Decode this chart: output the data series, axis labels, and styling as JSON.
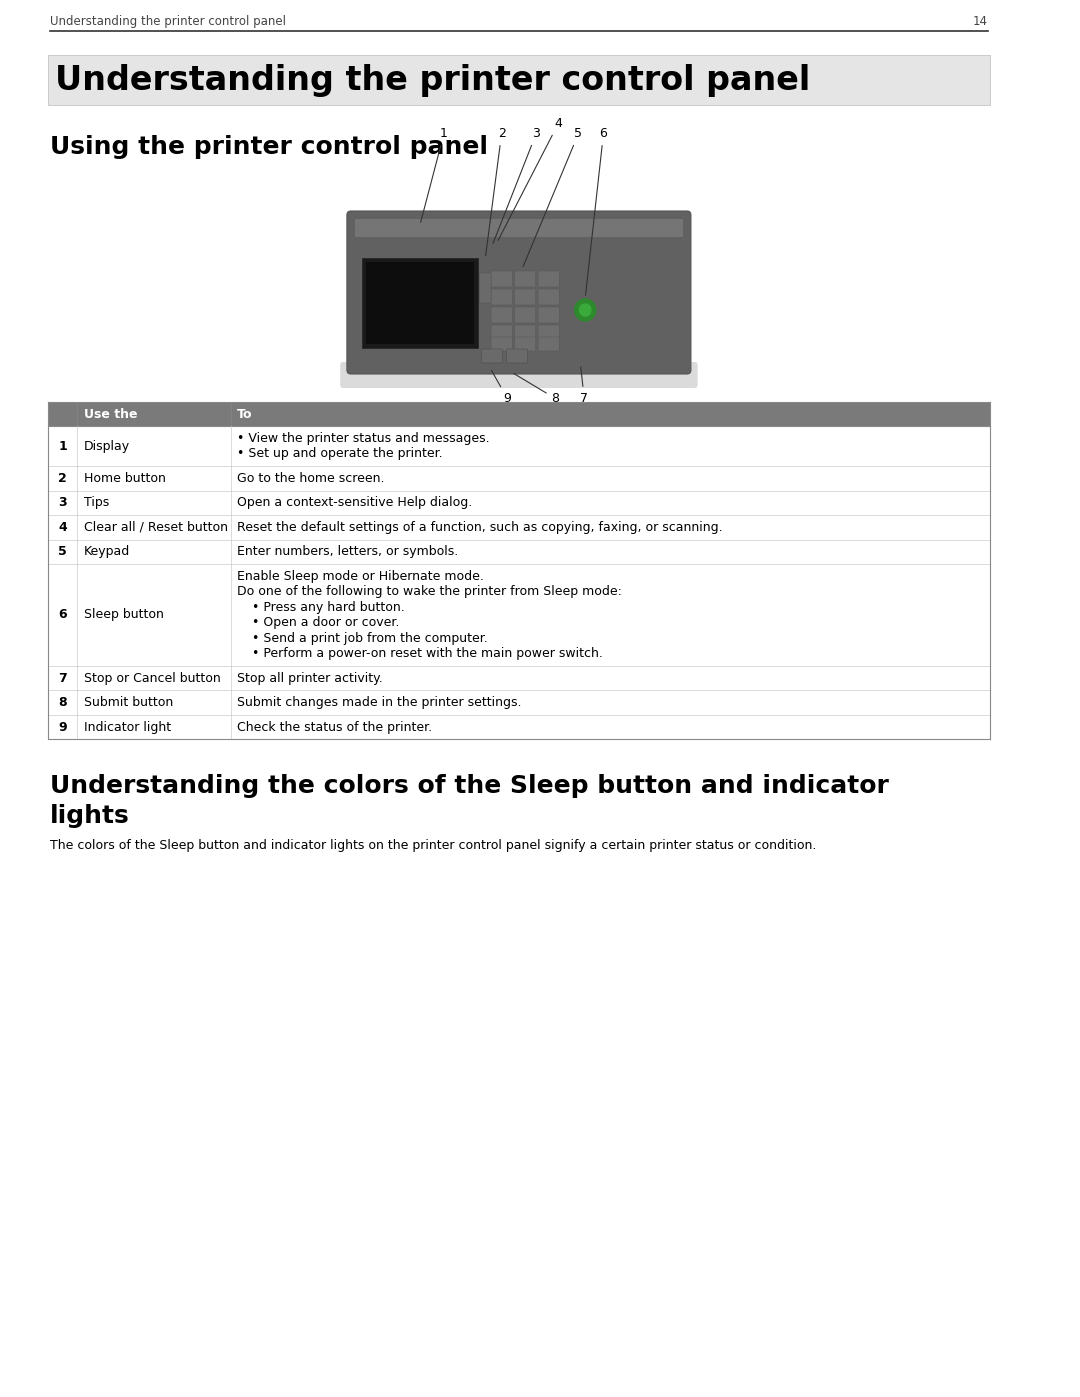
{
  "page_width": 10.8,
  "page_height": 13.97,
  "dpi": 100,
  "bg_color": "#ffffff",
  "header_text": "Understanding the printer control panel",
  "header_page_num": "14",
  "header_font_size": 8.5,
  "section1_title": "Understanding the printer control panel",
  "section1_font_size": 24,
  "section2_title": "Using the printer control panel",
  "section2_font_size": 18,
  "section3_title_line1": "Understanding the colors of the Sleep button and indicator",
  "section3_title_line2": "lights",
  "section3_font_size": 18,
  "section3_body": "The colors of the Sleep button and indicator lights on the printer control panel signify a certain printer status or condition.",
  "section3_body_font_size": 9,
  "table_header_bg": "#7a7a7a",
  "table_header_color": "#ffffff",
  "table_header_cols": [
    "Use the",
    "To"
  ],
  "table_rows": [
    {
      "num": "1",
      "use": "Display",
      "to_lines": [
        "• View the printer status and messages.",
        "• Set up and operate the printer."
      ]
    },
    {
      "num": "2",
      "use": "Home button",
      "to_lines": [
        "Go to the home screen."
      ]
    },
    {
      "num": "3",
      "use": "Tips",
      "to_lines": [
        "Open a context-sensitive Help dialog."
      ]
    },
    {
      "num": "4",
      "use": "Clear all / Reset button",
      "to_lines": [
        "Reset the default settings of a function, such as copying, faxing, or scanning."
      ]
    },
    {
      "num": "5",
      "use": "Keypad",
      "to_lines": [
        "Enter numbers, letters, or symbols."
      ]
    },
    {
      "num": "6",
      "use": "Sleep button",
      "to_lines": [
        "Enable Sleep mode or Hibernate mode.",
        "Do one of the following to wake the printer from Sleep mode:",
        "  • Press any hard button.",
        "  • Open a door or cover.",
        "  • Send a print job from the computer.",
        "  • Perform a power-on reset with the main power switch."
      ]
    },
    {
      "num": "7",
      "use": "Stop or Cancel button",
      "to_lines": [
        "Stop all printer activity."
      ]
    },
    {
      "num": "8",
      "use": "Submit button",
      "to_lines": [
        "Submit changes made in the printer settings."
      ]
    },
    {
      "num": "9",
      "use": "Indicator light",
      "to_lines": [
        "Check the status of the printer."
      ]
    }
  ],
  "table_border_color": "#aaaaaa",
  "table_text_color": "#000000",
  "table_fs": 9.0,
  "ml": 0.52,
  "mr": 0.52
}
